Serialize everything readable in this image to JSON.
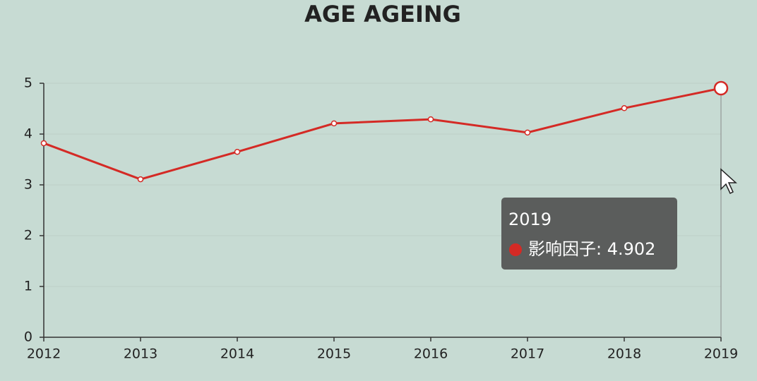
{
  "chart_data": {
    "type": "line",
    "title": "AGE AGEING",
    "categories": [
      "2012",
      "2013",
      "2014",
      "2015",
      "2016",
      "2017",
      "2018",
      "2019"
    ],
    "series": [
      {
        "name": "影响因子",
        "color": "#d42a25",
        "values": [
          3.82,
          3.11,
          3.65,
          4.21,
          4.29,
          4.03,
          4.51,
          4.902
        ]
      }
    ],
    "ylim": [
      0,
      5
    ],
    "yticks": [
      0,
      1,
      2,
      3,
      4,
      5
    ],
    "grid": true,
    "tooltip": {
      "label": "影响因子: 4.902"
    }
  }
}
